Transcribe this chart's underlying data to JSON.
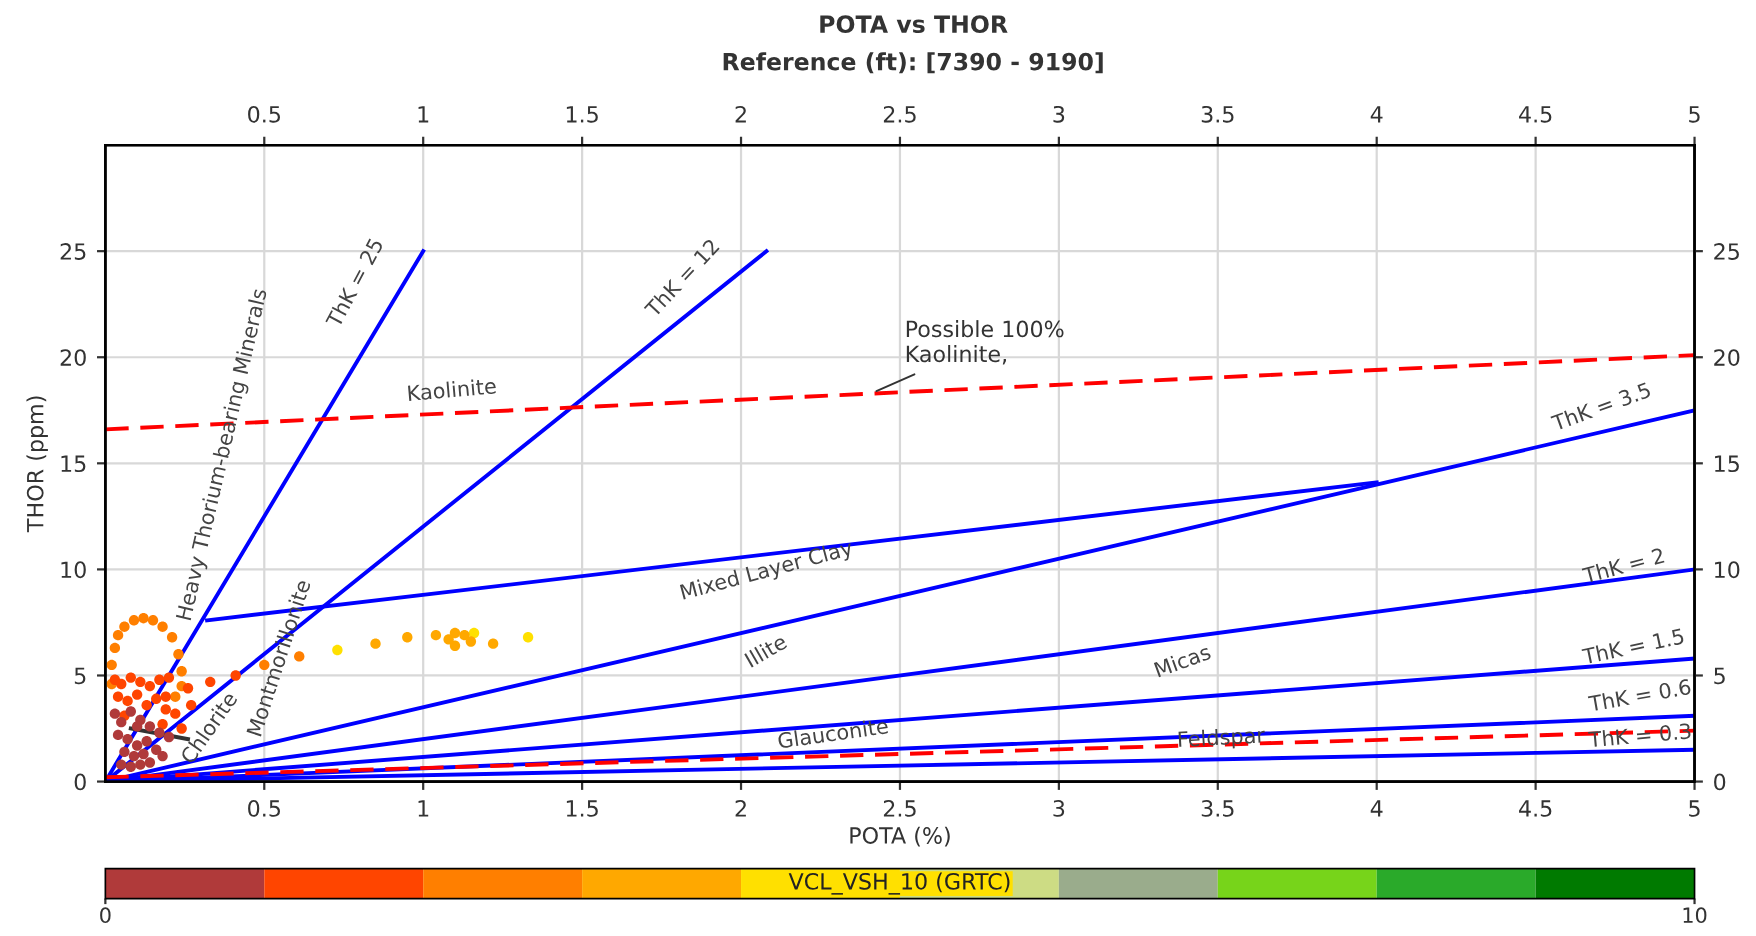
{
  "chart_data": {
    "type": "line",
    "title": "POTA vs THOR",
    "subtitle": "Reference (ft): [7390 - 9190]",
    "xlabel": "POTA (%)",
    "ylabel": "THOR (ppm)",
    "clabel": "VCL_VSH_10 (GRTC)",
    "xlim": [
      0,
      5
    ],
    "xticks": [
      0.5,
      1,
      1.5,
      2,
      2.5,
      3,
      3.5,
      4,
      4.5,
      5
    ],
    "x2lim": [
      0,
      5
    ],
    "x2ticks": [
      0.5,
      1,
      1.5,
      2,
      2.5,
      3,
      3.5,
      4,
      4.5,
      5
    ],
    "ylim": [
      0,
      30
    ],
    "yticks": [
      0,
      5,
      10,
      15,
      20,
      25
    ],
    "y2lim": [
      0,
      30
    ],
    "y2ticks": [
      0,
      5,
      10,
      15,
      20,
      25
    ],
    "clim": [
      0,
      10
    ],
    "cticks": [
      0,
      10
    ],
    "grid": true,
    "series": [
      {
        "color": "#0000ff",
        "line_style": "solid",
        "x": [
          0,
          1
        ],
        "values": [
          0,
          25
        ]
      },
      {
        "color": "#0000ff",
        "line_style": "solid",
        "x": [
          0,
          2.08
        ],
        "values": [
          0,
          25
        ]
      },
      {
        "color": "#0000ff",
        "line_style": "solid",
        "x": [
          0,
          5
        ],
        "values": [
          0,
          17.5
        ]
      },
      {
        "color": "#0000ff",
        "line_style": "solid",
        "x": [
          0.32,
          4
        ],
        "values": [
          7.6,
          14.1
        ]
      },
      {
        "color": "#0000ff",
        "line_style": "solid",
        "x": [
          0,
          5
        ],
        "values": [
          0,
          10
        ]
      },
      {
        "color": "#0000ff",
        "line_style": "solid",
        "x": [
          0,
          5
        ],
        "values": [
          0,
          5.8
        ]
      },
      {
        "color": "#0000ff",
        "line_style": "solid",
        "x": [
          0,
          5
        ],
        "values": [
          0,
          3.1
        ]
      },
      {
        "color": "#0000ff",
        "line_style": "solid",
        "x": [
          0,
          5
        ],
        "values": [
          0,
          1.5
        ]
      },
      {
        "color": "#ff0000",
        "line_style": "dashed",
        "x": [
          0,
          5
        ],
        "values": [
          0.2,
          2.4
        ]
      },
      {
        "color": "#ff0000",
        "line_style": "dashed",
        "x": [
          0,
          5
        ],
        "values": [
          16.6,
          20.1
        ]
      },
      {
        "color": "#333333",
        "line_style": "solid",
        "x": [
          0.08,
          0.26
        ],
        "values": [
          2.5,
          2.0
        ]
      },
      {
        "type": "scatter",
        "marker": "circle",
        "color": "#ffe000",
        "x": [
          0.73,
          1.16,
          1.33
        ],
        "values": [
          6.2,
          7.0,
          6.8
        ]
      },
      {
        "type": "scatter",
        "marker": "circle",
        "color": "#ffa800",
        "x": [
          0.85,
          0.95,
          1.04,
          1.1,
          1.1,
          1.15,
          1.22,
          1.08,
          1.13
        ],
        "values": [
          6.5,
          6.8,
          6.9,
          7.0,
          6.4,
          6.6,
          6.5,
          6.7,
          6.9
        ]
      },
      {
        "type": "scatter",
        "marker": "circle",
        "color": "#ff7f00",
        "x": [
          0.61,
          0.5,
          0.02,
          0.02,
          0.03,
          0.04,
          0.06,
          0.09,
          0.12,
          0.15,
          0.18,
          0.21,
          0.23,
          0.24,
          0.24,
          0.22
        ],
        "values": [
          5.9,
          5.5,
          4.6,
          5.5,
          6.3,
          6.9,
          7.3,
          7.6,
          7.7,
          7.6,
          7.3,
          6.8,
          6.0,
          5.2,
          4.5,
          4.0
        ]
      },
      {
        "type": "scatter",
        "marker": "circle",
        "color": "#ff4500",
        "x": [
          0.41,
          0.33,
          0.26,
          0.19,
          0.03,
          0.05,
          0.08,
          0.11,
          0.14,
          0.17,
          0.2,
          0.04,
          0.07,
          0.1,
          0.13,
          0.16,
          0.19,
          0.22,
          0.06,
          0.12,
          0.18,
          0.24,
          0.27
        ],
        "values": [
          5.0,
          4.7,
          4.4,
          4.0,
          4.8,
          4.6,
          4.9,
          4.7,
          4.5,
          4.8,
          4.9,
          4.0,
          3.8,
          4.1,
          3.6,
          3.9,
          3.4,
          3.2,
          3.1,
          null,
          2.7,
          2.5,
          3.6
        ]
      },
      {
        "type": "scatter",
        "marker": "circle",
        "color": "#b03a3a",
        "x": [
          0.03,
          0.05,
          0.08,
          0.11,
          0.14,
          0.17,
          0.2,
          0.04,
          0.07,
          0.1,
          0.13,
          0.16,
          0.06,
          0.09,
          0.12,
          0.15,
          0.18,
          0.05,
          0.08,
          0.11,
          0.14,
          0.1
        ],
        "values": [
          3.2,
          2.8,
          3.3,
          2.9,
          2.6,
          2.3,
          2.1,
          2.2,
          2.0,
          1.7,
          1.9,
          1.5,
          1.4,
          1.2,
          1.3,
          null,
          1.2,
          0.8,
          0.7,
          0.8,
          0.9,
          2.6
        ]
      }
    ],
    "annotations": [
      "Heavy Thorium-bearing Minerals",
      "ThK = 25",
      "ThK = 12",
      "Kaolinite",
      {
        "text": "Possible 100%\nKaolinite,",
        "x": 2.41,
        "y": 18.3
      },
      "ThK = 3.5",
      "Mixed Layer Clay",
      "Illite",
      "ThK = 2",
      "Micas",
      "ThK = 1.5",
      "Glauconite",
      "Feldspar",
      "ThK = 0.6",
      "ThK = 0.3",
      "Montmorillonite",
      "Chlorite"
    ]
  }
}
